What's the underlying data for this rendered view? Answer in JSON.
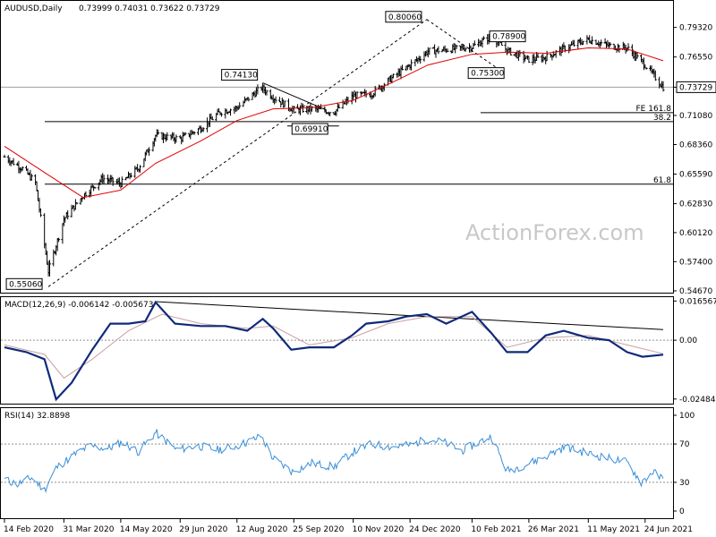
{
  "header": {
    "symbol": "AUDUSD,Daily",
    "ohlc": "0.73999 0.74031 0.73622 0.73729"
  },
  "watermark": "ActionForex.com",
  "chart_data": [
    {
      "type": "line",
      "title": "AUDUSD,Daily",
      "subtitle": "0.73999 0.74031 0.73622 0.73729",
      "bar_type": "OHLC",
      "ylim": [
        0.545,
        0.818
      ],
      "y_ticks": [
        "0.79320",
        "0.76550",
        "0.73729",
        "0.71080",
        "0.68360",
        "0.65590",
        "0.62830",
        "0.60120",
        "0.57400",
        "0.54670"
      ],
      "y_tick_values": [
        0.7932,
        0.7655,
        0.73729,
        0.7108,
        0.6836,
        0.6559,
        0.6283,
        0.6012,
        0.574,
        0.5467
      ],
      "x_ticks": [
        "14 Feb 2020",
        "31 Mar 2020",
        "14 May 2020",
        "29 Jun 2020",
        "12 Aug 2020",
        "25 Sep 2020",
        "10 Nov 2020",
        "24 Dec 2020",
        "10 Feb 2021",
        "26 Mar 2021",
        "11 May 2021",
        "24 Jun 2021"
      ],
      "series": [
        {
          "name": "Close",
          "x": [
            "2020-02-14",
            "2020-02-28",
            "2020-03-09",
            "2020-03-19",
            "2020-03-31",
            "2020-04-15",
            "2020-04-30",
            "2020-05-14",
            "2020-05-28",
            "2020-06-10",
            "2020-06-29",
            "2020-07-15",
            "2020-07-30",
            "2020-08-12",
            "2020-08-31",
            "2020-09-09",
            "2020-09-25",
            "2020-10-09",
            "2020-10-26",
            "2020-11-10",
            "2020-11-24",
            "2020-12-09",
            "2020-12-24",
            "2021-01-07",
            "2021-01-19",
            "2021-02-10",
            "2021-02-25",
            "2021-03-10",
            "2021-03-26",
            "2021-04-08",
            "2021-04-23",
            "2021-05-11",
            "2021-05-27",
            "2021-06-10",
            "2021-06-24",
            "2021-07-08"
          ],
          "values": [
            0.672,
            0.661,
            0.648,
            0.565,
            0.614,
            0.636,
            0.652,
            0.647,
            0.662,
            0.692,
            0.689,
            0.699,
            0.714,
            0.718,
            0.737,
            0.728,
            0.716,
            0.717,
            0.714,
            0.729,
            0.731,
            0.745,
            0.758,
            0.771,
            0.772,
            0.775,
            0.785,
            0.771,
            0.763,
            0.765,
            0.774,
            0.782,
            0.776,
            0.774,
            0.758,
            0.7373
          ]
        },
        {
          "name": "SMA",
          "x": [
            "2020-02-14",
            "2020-03-19",
            "2020-04-15",
            "2020-05-14",
            "2020-06-10",
            "2020-07-15",
            "2020-08-12",
            "2020-09-09",
            "2020-10-09",
            "2020-11-10",
            "2020-12-09",
            "2021-01-07",
            "2021-02-10",
            "2021-03-10",
            "2021-04-08",
            "2021-05-11",
            "2021-06-10",
            "2021-07-08"
          ],
          "values": [
            0.682,
            0.655,
            0.634,
            0.641,
            0.666,
            0.687,
            0.706,
            0.717,
            0.718,
            0.725,
            0.741,
            0.758,
            0.768,
            0.77,
            0.769,
            0.774,
            0.773,
            0.762
          ]
        }
      ],
      "annotations": [
        {
          "label": "0.80060",
          "x": "2021-01-06",
          "y": 0.8006
        },
        {
          "label": "0.78900",
          "x": "2021-02-25",
          "y": 0.789
        },
        {
          "label": "0.75300",
          "x": "2021-03-04",
          "y": 0.753
        },
        {
          "label": "0.74130",
          "x": "2020-09-01",
          "y": 0.7413
        },
        {
          "label": "0.69910",
          "x": "2020-09-25",
          "y": 0.6991
        },
        {
          "label": "0.55060",
          "x": "2020-03-19",
          "y": 0.5506
        }
      ],
      "levels": [
        {
          "label": "FE 161.8",
          "y": 0.7134
        },
        {
          "label": "38.2",
          "y": 0.7051
        },
        {
          "label": "61.8",
          "y": 0.6465
        }
      ],
      "current_price": "0.73729"
    },
    {
      "type": "line",
      "title": "MACD(12,26,9) -0.006142 -0.005673",
      "ylim": [
        -0.0268,
        0.0182
      ],
      "y_ticks": [
        "0.016567",
        "0.00",
        "-0.02484"
      ],
      "y_tick_values": [
        0.016567,
        0.0,
        -0.02484
      ],
      "series": [
        {
          "name": "MACD",
          "x": [
            "2020-02-14",
            "2020-03-02",
            "2020-03-16",
            "2020-03-25",
            "2020-04-06",
            "2020-04-22",
            "2020-05-06",
            "2020-05-20",
            "2020-06-02",
            "2020-06-10",
            "2020-06-25",
            "2020-07-15",
            "2020-08-03",
            "2020-08-20",
            "2020-09-01",
            "2020-09-09",
            "2020-09-23",
            "2020-10-07",
            "2020-10-26",
            "2020-11-09",
            "2020-11-20",
            "2020-12-07",
            "2020-12-21",
            "2021-01-06",
            "2021-01-21",
            "2021-02-10",
            "2021-02-25",
            "2021-03-09",
            "2021-03-25",
            "2021-04-08",
            "2021-04-22",
            "2021-05-11",
            "2021-05-27",
            "2021-06-10",
            "2021-06-22",
            "2021-07-08"
          ],
          "values": [
            -0.003,
            -0.005,
            -0.008,
            -0.025,
            -0.018,
            -0.004,
            0.007,
            0.007,
            0.008,
            0.016,
            0.007,
            0.006,
            0.006,
            0.004,
            0.009,
            0.005,
            -0.004,
            -0.003,
            -0.003,
            0.002,
            0.007,
            0.008,
            0.01,
            0.011,
            0.007,
            0.012,
            0.003,
            -0.005,
            -0.005,
            0.002,
            0.004,
            0.001,
            0.0,
            -0.005,
            -0.007,
            -0.0061
          ]
        },
        {
          "name": "Signal",
          "x": [
            "2020-02-14",
            "2020-03-16",
            "2020-03-31",
            "2020-04-22",
            "2020-05-20",
            "2020-06-15",
            "2020-07-15",
            "2020-08-20",
            "2020-09-09",
            "2020-10-07",
            "2020-11-09",
            "2020-12-07",
            "2021-01-06",
            "2021-02-10",
            "2021-03-09",
            "2021-04-08",
            "2021-05-11",
            "2021-06-10",
            "2021-07-08"
          ],
          "values": [
            -0.002,
            -0.006,
            -0.016,
            -0.008,
            0.004,
            0.011,
            0.007,
            0.005,
            0.006,
            -0.002,
            0.001,
            0.007,
            0.01,
            0.01,
            -0.003,
            0.001,
            0.002,
            -0.002,
            -0.0057
          ]
        }
      ],
      "trendline": {
        "from": [
          "2020-06-10",
          0.0163
        ],
        "to": [
          "2021-07-08",
          0.0045
        ]
      }
    },
    {
      "type": "line",
      "title": "RSI(14) 32.8898",
      "ylim": [
        0,
        100
      ],
      "y_ticks": [
        "100",
        "70",
        "30",
        "0"
      ],
      "y_tick_values": [
        100,
        70,
        30,
        0
      ],
      "series": [
        {
          "name": "RSI",
          "x": [
            "2020-02-14",
            "2020-02-24",
            "2020-03-06",
            "2020-03-16",
            "2020-03-25",
            "2020-04-07",
            "2020-04-20",
            "2020-05-04",
            "2020-05-15",
            "2020-05-28",
            "2020-06-10",
            "2020-06-26",
            "2020-07-13",
            "2020-07-28",
            "2020-08-12",
            "2020-08-31",
            "2020-09-09",
            "2020-09-24",
            "2020-10-09",
            "2020-10-26",
            "2020-11-09",
            "2020-11-24",
            "2020-12-09",
            "2020-12-24",
            "2021-01-06",
            "2021-01-19",
            "2021-02-02",
            "2021-02-25",
            "2021-03-09",
            "2021-03-25",
            "2021-04-08",
            "2021-04-23",
            "2021-05-11",
            "2021-05-27",
            "2021-06-10",
            "2021-06-21",
            "2021-06-30",
            "2021-07-08"
          ],
          "values": [
            33,
            28,
            35,
            22,
            45,
            58,
            68,
            65,
            72,
            62,
            82,
            64,
            68,
            64,
            68,
            78,
            55,
            41,
            50,
            46,
            61,
            70,
            67,
            69,
            75,
            72,
            63,
            78,
            42,
            49,
            57,
            67,
            60,
            55,
            51,
            30,
            41,
            32.9
          ]
        }
      ]
    }
  ]
}
